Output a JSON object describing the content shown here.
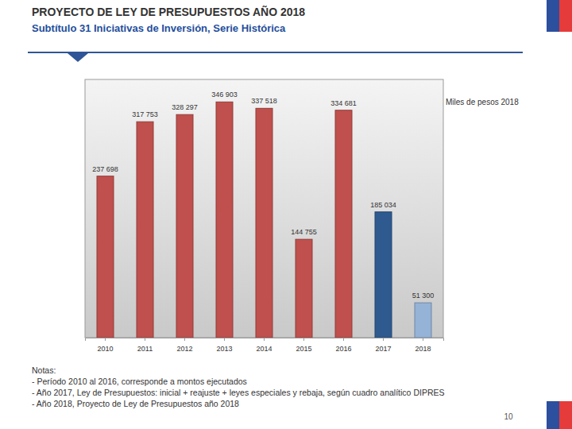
{
  "chart_data": {
    "type": "bar",
    "title": "PROYECTO DE LEY DE PRESUPUESTOS AÑO 2018",
    "subtitle": "Subtítulo 31 Iniciativas de Inversión, Serie Histórica",
    "ylabel": "Miles de pesos 2018",
    "categories": [
      "2010",
      "2011",
      "2012",
      "2013",
      "2014",
      "2015",
      "2016",
      "2017",
      "2018"
    ],
    "values": [
      237698,
      317753,
      328297,
      346903,
      337518,
      144755,
      334681,
      185034,
      51300
    ],
    "value_labels": [
      "237 698",
      "317 753",
      "328 297",
      "346 903",
      "337 518",
      "144 755",
      "334 681",
      "185 034",
      "51 300"
    ],
    "colors": [
      "#c0504d",
      "#c0504d",
      "#c0504d",
      "#c0504d",
      "#c0504d",
      "#c0504d",
      "#c0504d",
      "#2e5a90",
      "#95b3d7"
    ],
    "ylim": [
      0,
      380000
    ],
    "data_labels": true,
    "tick_labels": "x",
    "grid": false,
    "notes": [
      "Notas:",
      "- Período 2010 al 2016, corresponde a montos ejecutados",
      "- Año 2017, Ley de Presupuestos: inicial + reajuste + leyes especiales y rebaja, según cuadro analítico DIPRES",
      "- Año 2018, Proyecto de Ley de Presupuestos año 2018"
    ],
    "page_number": "10"
  }
}
